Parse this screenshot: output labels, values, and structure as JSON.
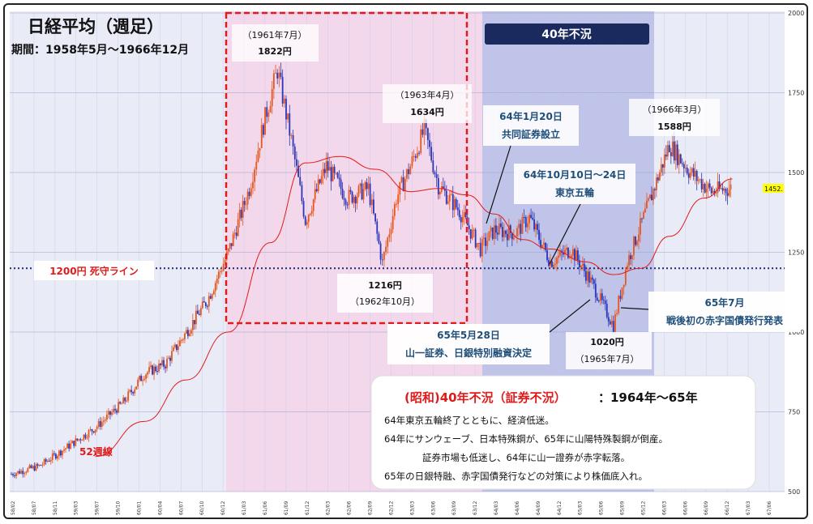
{
  "title": "日経平均（週足）",
  "period": "期間：1958年5月～1966年12月",
  "badge_40": "40年不況",
  "colors": {
    "up": "#e8561c",
    "down": "#2a35b8",
    "ma": "#e01b1b",
    "band_pink": "#f3d6e8",
    "band_blue": "#b9bde6",
    "red_box": "#e01b1b",
    "navy": "#1b2a5e",
    "deadline": "#1b2a7a"
  },
  "annotations": {
    "high_1961": {
      "date": "（1961年7月）",
      "value": "1822円"
    },
    "high_1963": {
      "date": "（1963年4月）",
      "value": "1634円"
    },
    "high_1966": {
      "date": "（1966年3月）",
      "value": "1588円"
    },
    "low_1962": {
      "value": "1216円",
      "date": "（1962年10月）"
    },
    "low_1965": {
      "value": "1020円",
      "date": "（1965年7月）"
    },
    "kyodo": {
      "line1": "64年1月20日",
      "line2": "共同証券設立"
    },
    "olympics": {
      "line1": "64年10月10日～24日",
      "line2": "東京五輪"
    },
    "yamaichi": {
      "line1": "65年5月28日",
      "line2": "山一証券、日銀特別融資決定"
    },
    "deficit_bond": {
      "line1": "65年7月",
      "line2": "戦後初の赤字国債発行発表"
    },
    "deadline": "1200円 死守ライン",
    "ma52": "52週線",
    "last_price": "1452."
  },
  "summary": {
    "heading_red": "(昭和)40年不況（証券不況）",
    "heading_black": "：1964年～65年",
    "lines": [
      "64年東京五輪終了とともに、経済低迷。",
      "64年にサンウェーブ、日本特殊鋼が、65年に山陽特殊製鋼が倒産。",
      "証券市場も低迷し、64年に山一證券が赤字転落。",
      "65年の日銀特融、赤字国債発行などの対策により株価底入れ。"
    ]
  },
  "chart_data": {
    "type": "candlestick",
    "title": "日経平均（週足）",
    "period": "1958年5月～1966年12月",
    "y_axis": {
      "min": 500,
      "max": 2000,
      "ticks": [
        2000,
        1750,
        1500,
        1250,
        1000,
        750,
        500
      ],
      "side": "right"
    },
    "x_tick_labels": [
      "58/02",
      "58/07",
      "58/11",
      "59/03",
      "59/07",
      "59/10",
      "60/01",
      "60/04",
      "60/07",
      "60/10",
      "60/12",
      "61/03",
      "61/06",
      "61/09",
      "61/12",
      "62/03",
      "62/06",
      "62/09",
      "62/12",
      "63/03",
      "63/06",
      "63/09",
      "63/12",
      "64/03",
      "64/06",
      "64/09",
      "64/12",
      "65/03",
      "65/06",
      "65/09",
      "65/12",
      "66/03",
      "66/06",
      "66/09",
      "66/12",
      "67/03",
      "67/06"
    ],
    "price_path": [
      {
        "date": "1958-05",
        "value": 555
      },
      {
        "date": "1958-09",
        "value": 580
      },
      {
        "date": "1959-01",
        "value": 640
      },
      {
        "date": "1959-05",
        "value": 700
      },
      {
        "date": "1959-09",
        "value": 780
      },
      {
        "date": "1959-12",
        "value": 870
      },
      {
        "date": "1960-03",
        "value": 900
      },
      {
        "date": "1960-06",
        "value": 1000
      },
      {
        "date": "1960-09",
        "value": 1100
      },
      {
        "date": "1960-12",
        "value": 1250
      },
      {
        "date": "1961-03",
        "value": 1450
      },
      {
        "date": "1961-05",
        "value": 1650
      },
      {
        "date": "1961-07",
        "value": 1822
      },
      {
        "date": "1961-09",
        "value": 1600
      },
      {
        "date": "1961-11",
        "value": 1350
      },
      {
        "date": "1962-02",
        "value": 1520
      },
      {
        "date": "1962-05",
        "value": 1420
      },
      {
        "date": "1962-08",
        "value": 1450
      },
      {
        "date": "1962-10",
        "value": 1216
      },
      {
        "date": "1962-12",
        "value": 1420
      },
      {
        "date": "1963-02",
        "value": 1520
      },
      {
        "date": "1963-04",
        "value": 1634
      },
      {
        "date": "1963-06",
        "value": 1460
      },
      {
        "date": "1963-09",
        "value": 1380
      },
      {
        "date": "1963-12",
        "value": 1260
      },
      {
        "date": "1964-02",
        "value": 1320
      },
      {
        "date": "1964-05",
        "value": 1310
      },
      {
        "date": "1964-07",
        "value": 1360
      },
      {
        "date": "1964-10",
        "value": 1220
      },
      {
        "date": "1965-01",
        "value": 1260
      },
      {
        "date": "1965-04",
        "value": 1150
      },
      {
        "date": "1965-07",
        "value": 1020
      },
      {
        "date": "1965-09",
        "value": 1220
      },
      {
        "date": "1965-12",
        "value": 1400
      },
      {
        "date": "1966-03",
        "value": 1588
      },
      {
        "date": "1966-06",
        "value": 1500
      },
      {
        "date": "1966-09",
        "value": 1440
      },
      {
        "date": "1966-12",
        "value": 1452
      }
    ],
    "ma_52_week": [
      {
        "date": "1959-05",
        "value": 610
      },
      {
        "date": "1959-12",
        "value": 720
      },
      {
        "date": "1960-06",
        "value": 850
      },
      {
        "date": "1960-12",
        "value": 1000
      },
      {
        "date": "1961-06",
        "value": 1280
      },
      {
        "date": "1961-11",
        "value": 1530
      },
      {
        "date": "1962-04",
        "value": 1550
      },
      {
        "date": "1962-09",
        "value": 1510
      },
      {
        "date": "1963-02",
        "value": 1440
      },
      {
        "date": "1963-06",
        "value": 1450
      },
      {
        "date": "1963-10",
        "value": 1430
      },
      {
        "date": "1964-02",
        "value": 1370
      },
      {
        "date": "1964-06",
        "value": 1290
      },
      {
        "date": "1964-10",
        "value": 1260
      },
      {
        "date": "1965-03",
        "value": 1220
      },
      {
        "date": "1965-07",
        "value": 1180
      },
      {
        "date": "1965-11",
        "value": 1200
      },
      {
        "date": "1966-03",
        "value": 1300
      },
      {
        "date": "1966-08",
        "value": 1420
      },
      {
        "date": "1966-12",
        "value": 1480
      }
    ],
    "reference_line": {
      "label": "1200円 死守ライン",
      "value": 1200
    },
    "highlight_periods": [
      {
        "label": "",
        "start": "1961-01",
        "end": "1964-01"
      },
      {
        "label": "40年不況",
        "start": "1964-01",
        "end": "1966-01"
      }
    ],
    "legend": "none",
    "grid": true
  }
}
